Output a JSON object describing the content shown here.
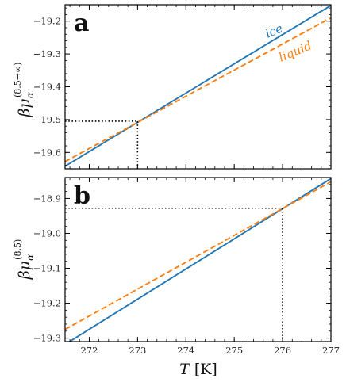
{
  "chart_data": [
    {
      "panel": "a",
      "type": "line",
      "ylabel": {
        "symbol": "βμ",
        "sub": "α",
        "sup": "(8.5→∞)"
      },
      "xlim": [
        271.5,
        277.0
      ],
      "ylim": [
        -19.65,
        -19.15
      ],
      "yticks": [
        -19.2,
        -19.3,
        -19.4,
        -19.5,
        -19.6
      ],
      "ytick_labels": [
        "−19.2",
        "−19.3",
        "−19.4",
        "−19.5",
        "−19.6"
      ],
      "series": [
        {
          "name": "ice",
          "style": "solid",
          "color": "#2277b4",
          "x": [
            271.5,
            277.0
          ],
          "y": [
            -19.642,
            -19.152
          ]
        },
        {
          "name": "liquid",
          "style": "dashed",
          "color": "#ff7f0e",
          "x": [
            271.5,
            277.0
          ],
          "y": [
            -19.628,
            -19.19
          ]
        }
      ],
      "intersection": {
        "x": 273.0,
        "y": -19.505
      }
    },
    {
      "panel": "b",
      "type": "line",
      "ylabel": {
        "symbol": "βμ",
        "sub": "α",
        "sup": "(8.5)"
      },
      "xlabel": {
        "symbol": "T",
        "unit": "[K]"
      },
      "xlim": [
        271.5,
        277.0
      ],
      "ylim": [
        -19.31,
        -18.84
      ],
      "xticks": [
        272,
        273,
        274,
        275,
        276,
        277
      ],
      "xtick_labels": [
        "272",
        "273",
        "274",
        "275",
        "276",
        "277"
      ],
      "yticks": [
        -18.9,
        -19.0,
        -19.1,
        -19.2,
        -19.3
      ],
      "ytick_labels": [
        "−18.9",
        "−19.0",
        "−19.1",
        "−19.2",
        "−19.3"
      ],
      "series": [
        {
          "name": "ice",
          "style": "solid",
          "color": "#2277b4",
          "x": [
            271.5,
            277.0
          ],
          "y": [
            -19.318,
            -18.843
          ]
        },
        {
          "name": "liquid",
          "style": "dashed",
          "color": "#ff7f0e",
          "x": [
            271.5,
            277.0
          ],
          "y": [
            -19.275,
            -18.852
          ]
        }
      ],
      "intersection": {
        "x": 276.0,
        "y": -18.928
      }
    }
  ]
}
